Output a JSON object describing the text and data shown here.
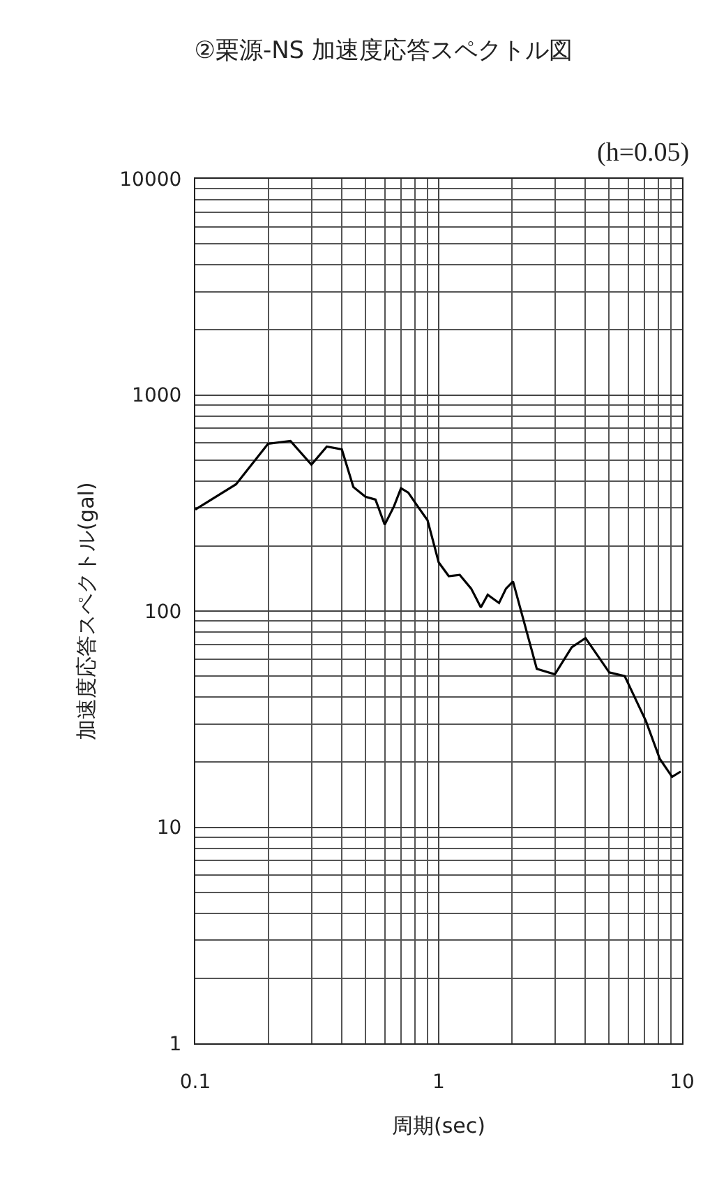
{
  "chart_data": {
    "type": "line",
    "title": "②栗源-NS 加速度応答スペクトル図",
    "xlabel": "周期(sec)",
    "ylabel": "加速度応答スペクトル(gal)",
    "annotations": [
      "(h=0.05)"
    ],
    "log": "xy",
    "grid": true,
    "xlim": [
      0.1,
      10
    ],
    "xticks": [
      0.1,
      1,
      10
    ],
    "ylim": [
      1,
      10000
    ],
    "yticks": [
      1,
      10,
      100,
      1000,
      10000
    ],
    "series": [
      {
        "color": "#000000",
        "x": [
          0.1,
          0.147,
          0.199,
          0.246,
          0.3,
          0.347,
          0.4,
          0.446,
          0.5,
          0.55,
          0.6,
          0.655,
          0.7,
          0.75,
          0.82,
          0.9,
          1.0,
          1.1,
          1.22,
          1.36,
          1.49,
          1.59,
          1.77,
          1.89,
          2.02,
          2.53,
          3.0,
          3.52,
          4.01,
          5.02,
          5.81,
          7.1,
          8.1,
          9.1,
          9.87
        ],
        "values": [
          295,
          386,
          594,
          612,
          476,
          577,
          560,
          375,
          338,
          328,
          251,
          305,
          370,
          353,
          305,
          263,
          168,
          145,
          147,
          127,
          104,
          119,
          109,
          127,
          137,
          54,
          51,
          68,
          75,
          52,
          50,
          31,
          20.7,
          17.1,
          18.1
        ]
      }
    ]
  }
}
